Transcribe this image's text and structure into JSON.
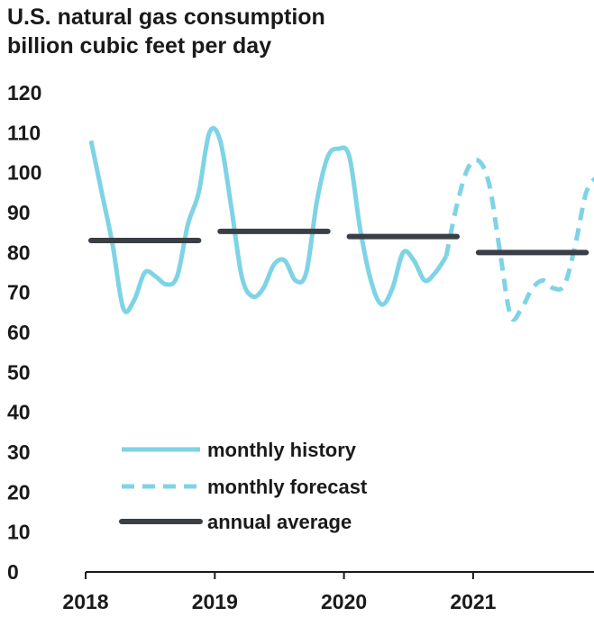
{
  "chart_data": {
    "type": "line",
    "title": "U.S. natural gas consumption",
    "subtitle": "billion cubic feet per day",
    "xlabel": "",
    "ylabel": "",
    "ylim": [
      0,
      120
    ],
    "y_ticks": [
      "0",
      "10",
      "20",
      "30",
      "40",
      "50",
      "60",
      "70",
      "80",
      "90",
      "100",
      "110",
      "120"
    ],
    "x_ticks": [
      "2018",
      "2019",
      "2020",
      "2021"
    ],
    "grid": false,
    "legend_position": "bottom-left",
    "colors": {
      "monthly": "#7fd3e6",
      "annual": "#3a3f45"
    },
    "series": [
      {
        "name": "monthly history",
        "style": "solid",
        "x": [
          "2018-01",
          "2018-02",
          "2018-03",
          "2018-04",
          "2018-05",
          "2018-06",
          "2018-07",
          "2018-08",
          "2018-09",
          "2018-10",
          "2018-11",
          "2018-12",
          "2019-01",
          "2019-02",
          "2019-03",
          "2019-04",
          "2019-05",
          "2019-06",
          "2019-07",
          "2019-08",
          "2019-09",
          "2019-10",
          "2019-11",
          "2019-12",
          "2020-01",
          "2020-02",
          "2020-03",
          "2020-04",
          "2020-05",
          "2020-06",
          "2020-07",
          "2020-08",
          "2020-09",
          "2020-10"
        ],
        "values": [
          108,
          95,
          82,
          66,
          68,
          75,
          74,
          72,
          74,
          87,
          95,
          110,
          108,
          92,
          74,
          69,
          71,
          77,
          78,
          73,
          75,
          93,
          104,
          106,
          104,
          86,
          73,
          67,
          71,
          80,
          78,
          73,
          75,
          79
        ]
      },
      {
        "name": "monthly forecast",
        "style": "dashed",
        "x": [
          "2020-10",
          "2020-11",
          "2020-12",
          "2021-01",
          "2021-02",
          "2021-03",
          "2021-04",
          "2021-05",
          "2021-06",
          "2021-07",
          "2021-08",
          "2021-09",
          "2021-10",
          "2021-11",
          "2021-12"
        ],
        "values": [
          79,
          92,
          101,
          103,
          97,
          80,
          64,
          66,
          71,
          73,
          71,
          72,
          82,
          95,
          99
        ]
      },
      {
        "name": "annual average",
        "style": "solid-thick",
        "segments": [
          {
            "year": "2018",
            "value": 83
          },
          {
            "year": "2019",
            "value": 85.3
          },
          {
            "year": "2020",
            "value": 84
          },
          {
            "year": "2021",
            "value": 80
          }
        ]
      }
    ]
  }
}
